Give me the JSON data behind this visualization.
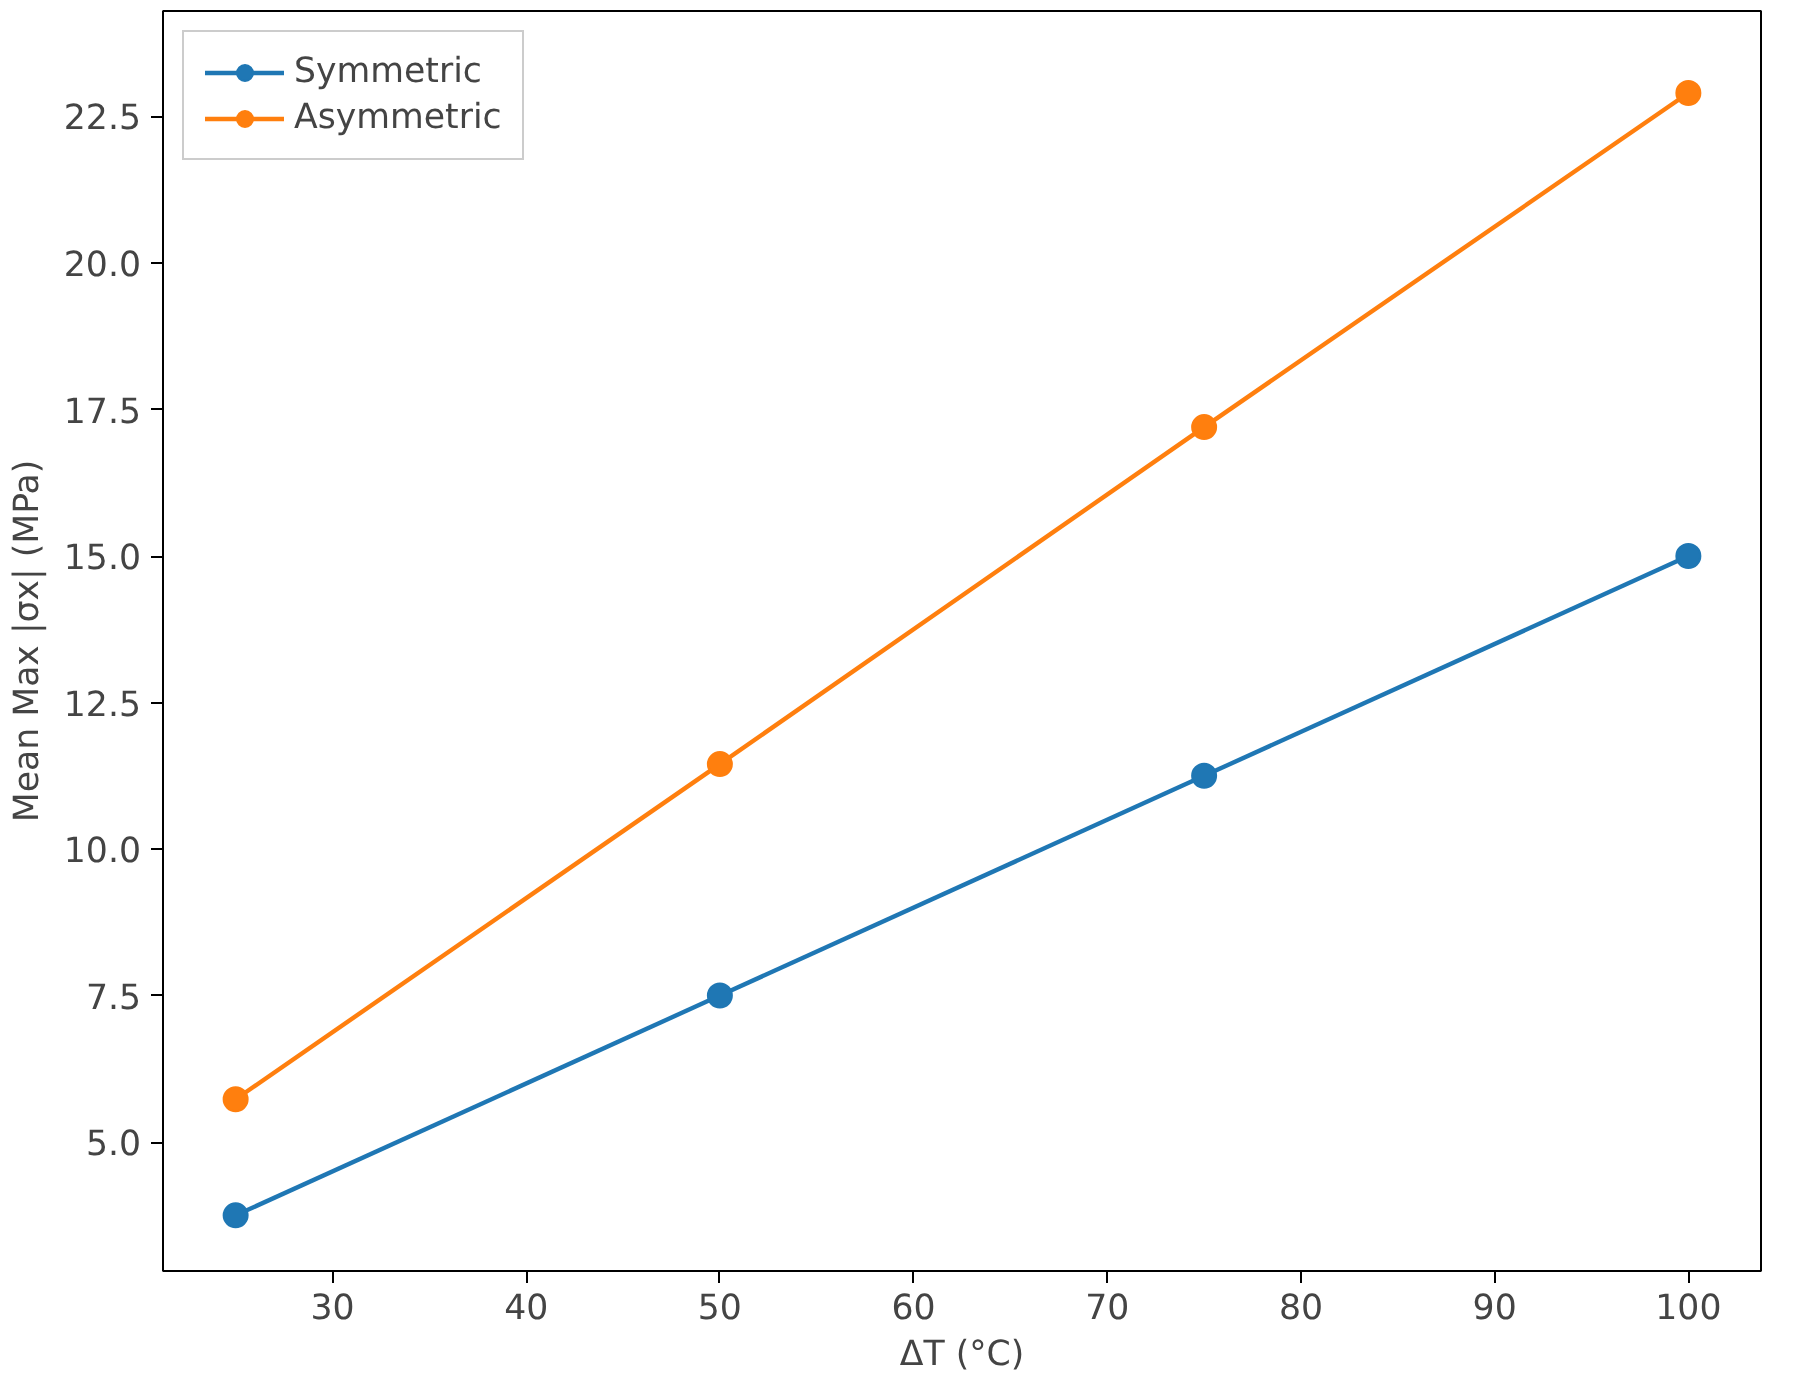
{
  "chart_data": {
    "type": "line",
    "xlabel": "ΔT (°C)",
    "ylabel": "Mean Max |σx| (MPa)",
    "x": [
      25,
      50,
      75,
      100
    ],
    "series": [
      {
        "name": "Symmetric",
        "color": "#1f77b4",
        "values": [
          3.75,
          7.5,
          11.25,
          15.0
        ]
      },
      {
        "name": "Asymmetric",
        "color": "#ff7f0e",
        "values": [
          5.73,
          11.45,
          17.2,
          22.9
        ]
      }
    ],
    "xlim": [
      21.25,
      103.75
    ],
    "ylim": [
      2.8,
      24.3
    ],
    "xticks": [
      30,
      40,
      50,
      60,
      70,
      80,
      90,
      100
    ],
    "yticks": [
      {
        "value": 5,
        "label": "5.0"
      },
      {
        "value": 7.5,
        "label": "7.5"
      },
      {
        "value": 10,
        "label": "10.0"
      },
      {
        "value": 12.5,
        "label": "12.5"
      },
      {
        "value": 15,
        "label": "15.0"
      },
      {
        "value": 17.5,
        "label": "17.5"
      },
      {
        "value": 20,
        "label": "20.0"
      },
      {
        "value": 22.5,
        "label": "22.5"
      }
    ],
    "grid": false,
    "legend": "top left",
    "marker": "circle",
    "line_style": "solid"
  }
}
